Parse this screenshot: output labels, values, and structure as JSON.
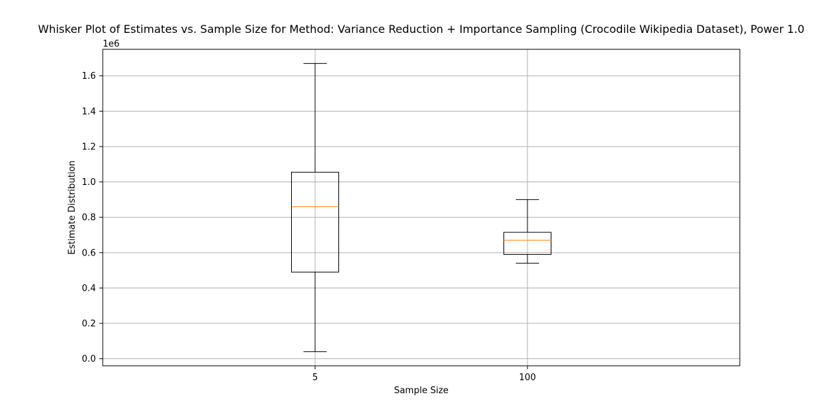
{
  "chart_data": {
    "type": "box",
    "title": "Whisker Plot of Estimates vs. Sample Size for Method: Variance Reduction + Importance Sampling (Crocodile Wikipedia Dataset), Power 1.0",
    "xlabel": "Sample Size",
    "ylabel": "Estimate Distribution",
    "y_offset_label": "1e6",
    "categories": [
      "5",
      "100"
    ],
    "boxes": [
      {
        "category": "5",
        "whisker_low": 0.04,
        "q1": 0.49,
        "median": 0.86,
        "q3": 1.055,
        "whisker_high": 1.67
      },
      {
        "category": "100",
        "whisker_low": 0.54,
        "q1": 0.59,
        "median": 0.67,
        "q3": 0.715,
        "whisker_high": 0.9
      }
    ],
    "ylim": [
      -0.04,
      1.75
    ],
    "yticks": [
      0.0,
      0.2,
      0.4,
      0.6,
      0.8,
      1.0,
      1.2,
      1.4,
      1.6
    ],
    "ytick_labels": [
      "0.0",
      "0.2",
      "0.4",
      "0.6",
      "0.8",
      "1.0",
      "1.2",
      "1.4",
      "1.6"
    ],
    "grid": true,
    "colors": {
      "box": "#000000",
      "median": "#ff7f0e",
      "grid": "#b0b0b0"
    }
  }
}
